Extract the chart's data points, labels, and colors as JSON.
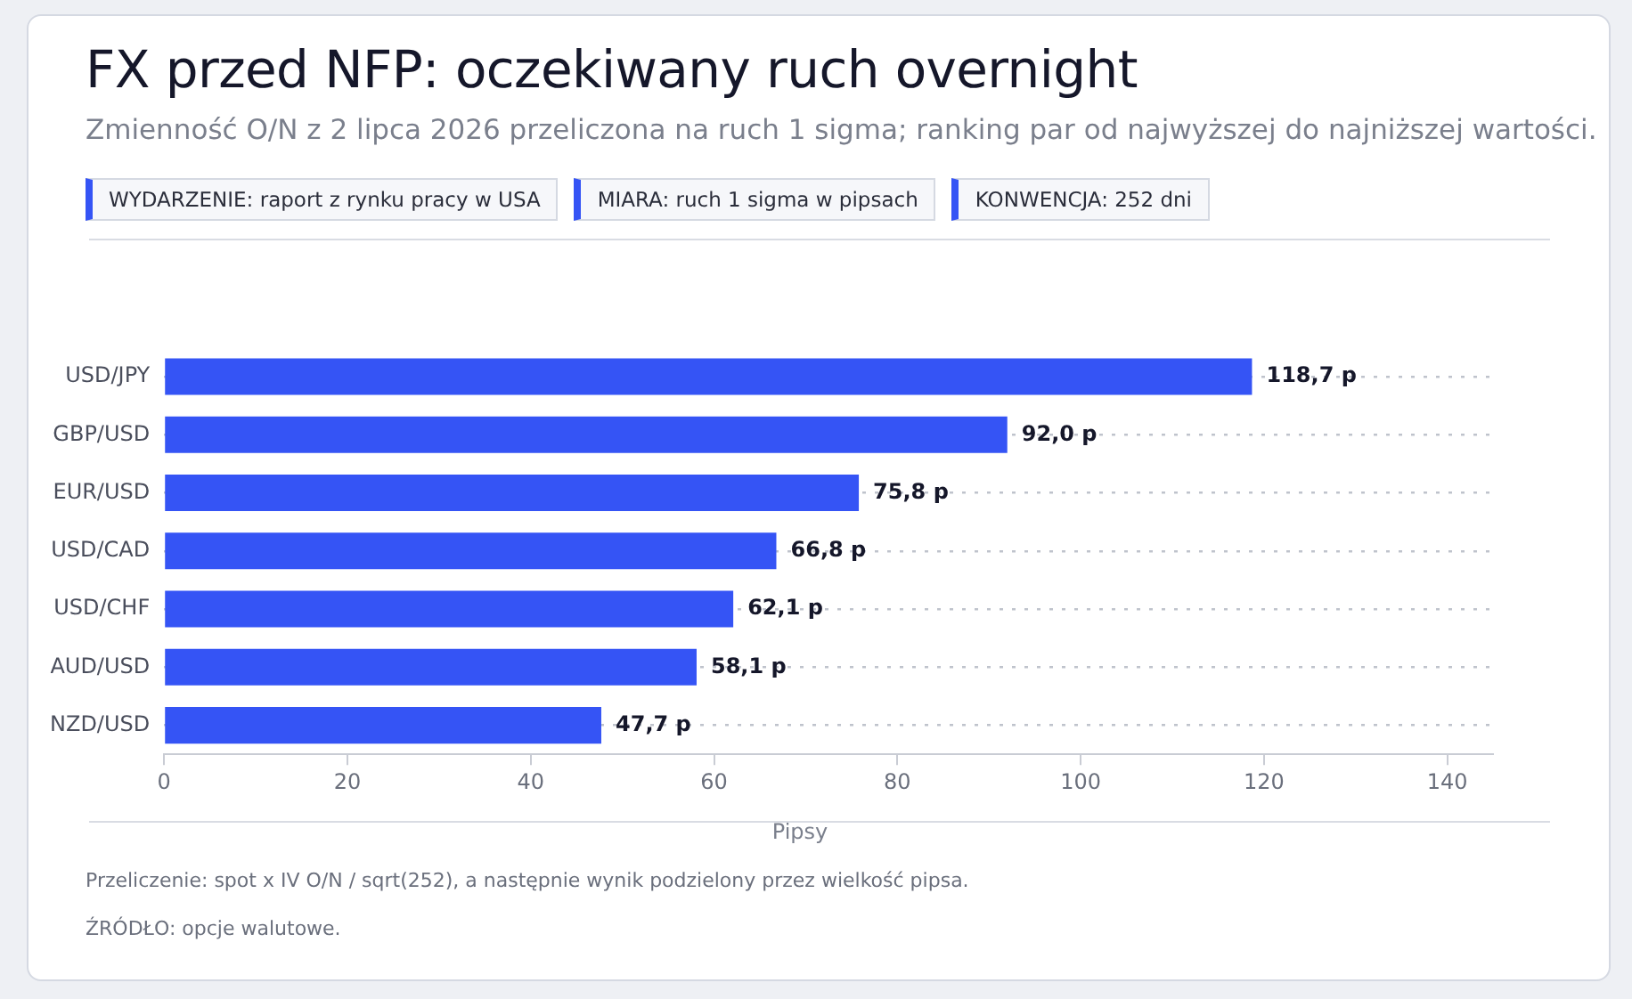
{
  "chart_data": {
    "type": "bar",
    "orientation": "horizontal",
    "title": "FX przed NFP: oczekiwany ruch overnight",
    "subtitle": "Zmienność O/N z 2 lipca 2026 przeliczona na ruch 1 sigma; ranking par od najwyższej do najniższej wartości.",
    "xlabel": "Pipsy",
    "categories": [
      "USD/JPY",
      "GBP/USD",
      "EUR/USD",
      "USD/CAD",
      "USD/CHF",
      "AUD/USD",
      "NZD/USD"
    ],
    "values": [
      118.7,
      92.0,
      75.8,
      66.8,
      62.1,
      58.1,
      47.7
    ],
    "value_labels": [
      "118,7 p",
      "92,0 p",
      "75,8 p",
      "66,8 p",
      "62,1 p",
      "58,1 p",
      "47,7 p"
    ],
    "color": "#3554f5",
    "xlim": [
      0,
      145
    ],
    "xticks": [
      0,
      20,
      40,
      60,
      80,
      100,
      120,
      140
    ],
    "grid": "y",
    "legend": false,
    "annotations": [
      "WYDARZENIE: raport z rynku pracy w USA",
      "MIARA: ruch 1 sigma w pipsach",
      "KONWENCJA: 252 dni",
      "Przeliczenie: spot x IV O/N / sqrt(252), a następnie wynik podzielony przez wielkość pipsa.",
      "ŹRÓDŁO: opcje walutowe."
    ]
  }
}
